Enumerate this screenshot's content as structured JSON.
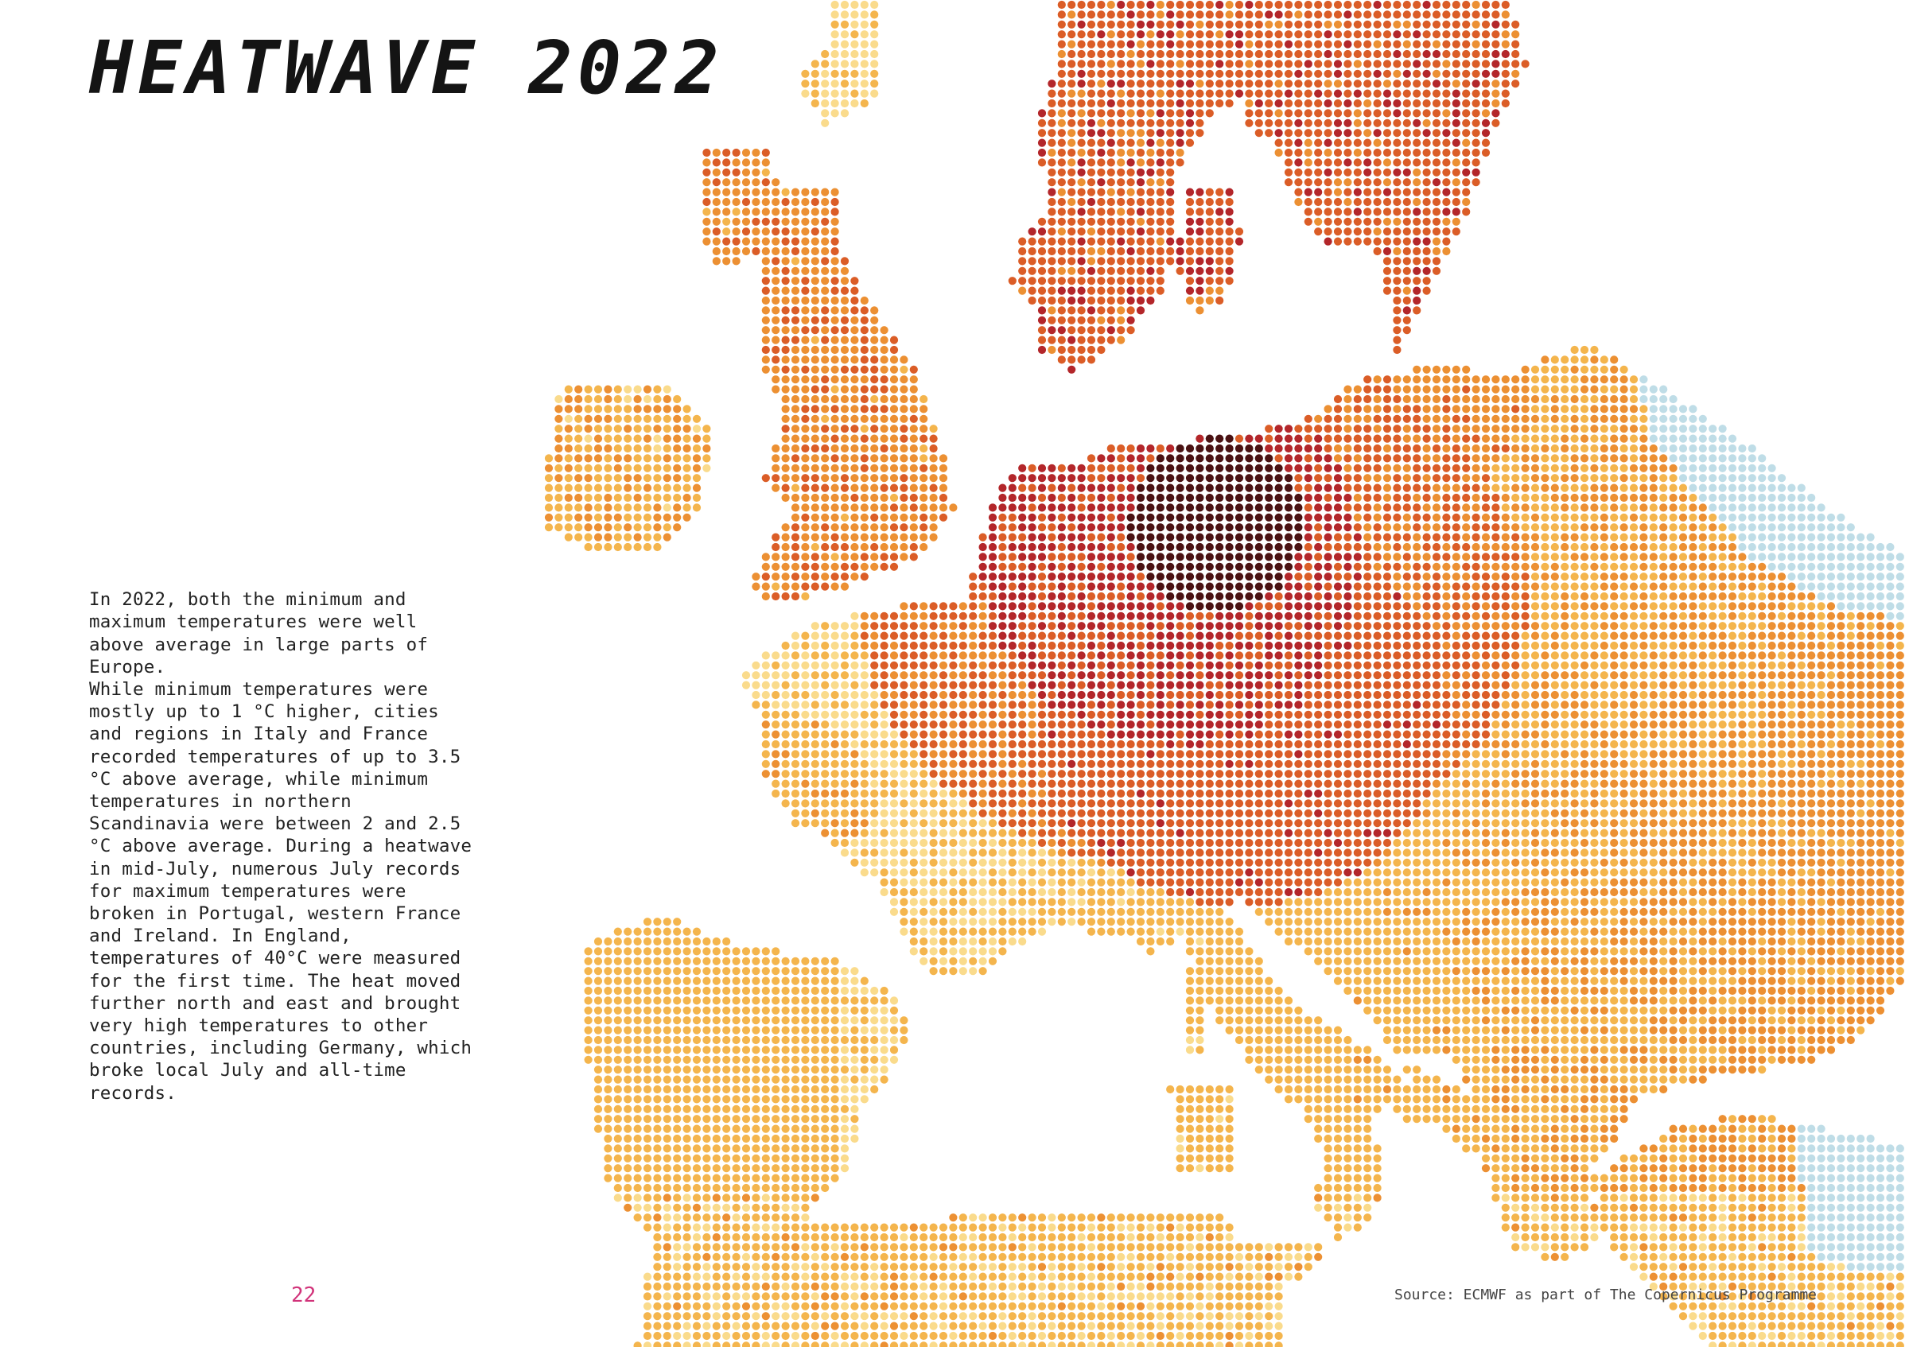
{
  "title": "HEATWAVE 2022",
  "body_paragraphs": [
    "In 2022, both the minimum and maximum temperatures were well above average in large parts of Europe.",
    "While minimum temperatures were mostly up to 1 °C higher, cities and regions in Italy and France recorded temperatures of up to 3.5 °C above average, while minimum temperatures in northern Scandinavia were between 2 and 2.5 °C above average. During a heatwave in mid-July, numerous July records for maximum temperatures were broken in Portugal, western France and Ireland. In England, temperatures of 40°C were measured for the first time. The heat moved further north and east and brought very high temperatures to other countries, including Germany, which broke local July and all-time records."
  ],
  "page_number": "22",
  "source": "Source: ECMWF as part of The Copernicus Programme",
  "colors": {
    "page_number": "#d1337a",
    "below_average": "#bfdde7",
    "level_1": "#fdeec0",
    "level_2": "#fadb8c",
    "level_3": "#f4b54d",
    "level_4": "#ec9033",
    "level_5": "#db5d27",
    "level_6": "#b3262a",
    "level_7": "#4a1112"
  }
}
